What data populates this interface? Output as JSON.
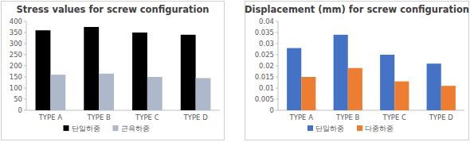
{
  "chart_data": [
    {
      "type": "bar",
      "title": "Stress values for screw configuration",
      "categories": [
        "TYPE A",
        "TYPE B",
        "TYPE C",
        "TYPE D"
      ],
      "series": [
        {
          "name": "단일하중",
          "color": "#000000",
          "values": [
            360,
            375,
            350,
            340
          ]
        },
        {
          "name": "근육하중",
          "color": "#adb9ca",
          "values": [
            160,
            165,
            150,
            145
          ]
        }
      ],
      "ylim": [
        0,
        400
      ],
      "yticks": [
        0,
        50,
        100,
        150,
        200,
        250,
        300,
        350,
        400
      ],
      "grid": false,
      "legend": "bottom"
    },
    {
      "type": "bar",
      "title": "Displacement (mm) for screw configuration",
      "categories": [
        "TYPE A",
        "TYPE B",
        "TYPE C",
        "TYPE D"
      ],
      "series": [
        {
          "name": "단일하중",
          "color": "#4472c4",
          "values": [
            0.028,
            0.034,
            0.025,
            0.021
          ]
        },
        {
          "name": "다중하중",
          "color": "#ed7d31",
          "values": [
            0.015,
            0.019,
            0.013,
            0.011
          ]
        }
      ],
      "ylim": [
        0,
        0.04
      ],
      "yticks": [
        0,
        0.005,
        0.01,
        0.015,
        0.02,
        0.025,
        0.03,
        0.035,
        0.04
      ],
      "grid": false,
      "legend": "bottom"
    }
  ]
}
